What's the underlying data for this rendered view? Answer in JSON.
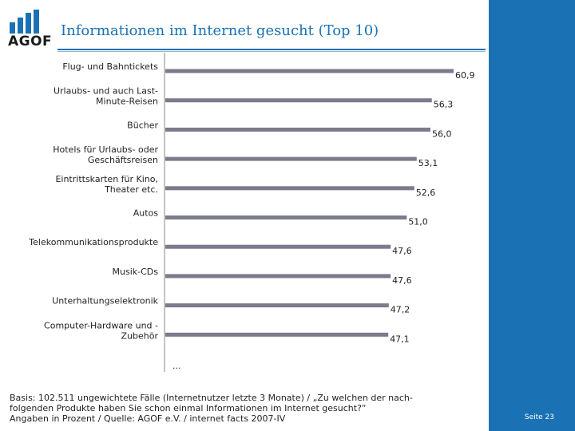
{
  "header": {
    "title": "Informationen im Internet gesucht (Top 10)",
    "logo_text": "AGOF"
  },
  "chart_data": {
    "type": "bar",
    "orientation": "horizontal",
    "title": "Informationen im Internet gesucht (Top 10)",
    "unit": "Prozent",
    "categories": [
      [
        "Flug- und Bahntickets"
      ],
      [
        "Urlaubs- und auch Last-",
        "Minute-Reisen"
      ],
      [
        "Bücher"
      ],
      [
        "Hotels für Urlaubs- oder",
        "Geschäftsreisen"
      ],
      [
        "Eintrittskarten für Kino,",
        "Theater etc."
      ],
      [
        "Autos"
      ],
      [
        "Telekommunikationsprodukte"
      ],
      [
        "Musik-CDs"
      ],
      [
        "Unterhaltungselektronik"
      ],
      [
        "Computer-Hardware und -",
        "Zubehör"
      ]
    ],
    "values": [
      60.9,
      56.3,
      56.0,
      53.1,
      52.6,
      51.0,
      47.6,
      47.6,
      47.2,
      47.1
    ],
    "value_labels": [
      "60,9",
      "56,3",
      "56,0",
      "53,1",
      "52,6",
      "51,0",
      "47,6",
      "47,6",
      "47,2",
      "47,1"
    ],
    "xlim": [
      0,
      60.9
    ],
    "bar_color": "#7b7b8c",
    "more_indicator": "..."
  },
  "footer": {
    "note": "Basis: 102.511 ungewichtete Fälle (Internetnutzer letzte 3 Monate) / „Zu welchen der nach-\nfolgenden Produkte haben Sie schon einmal Informationen im Internet gesucht?“\nAngaben in Prozent / Quelle: AGOF e.V. / internet facts 2007-IV",
    "page_label": "Seite 23"
  },
  "colors": {
    "brand_blue": "#1a72b4",
    "bar": "#7b7b8c"
  }
}
